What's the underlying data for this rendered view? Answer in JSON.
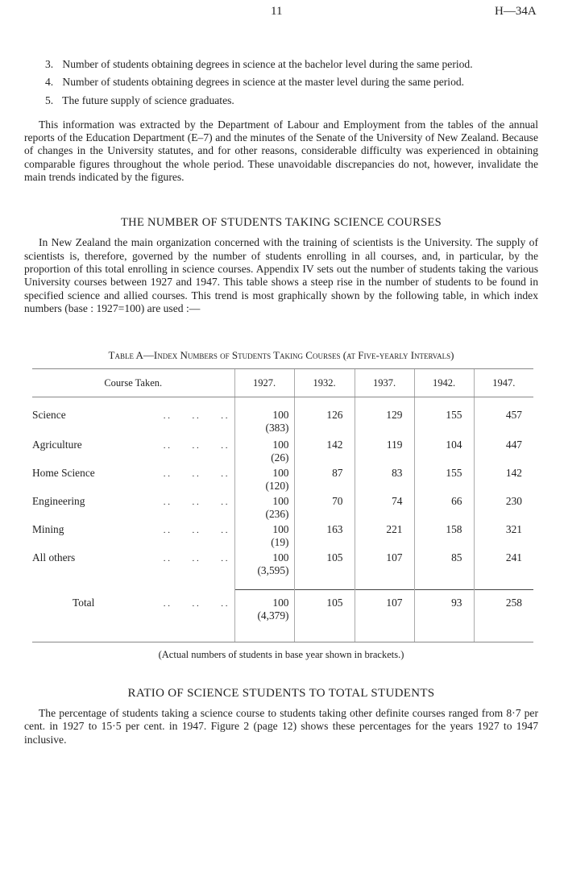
{
  "header": {
    "page_number": "11",
    "doc_code": "H—34A"
  },
  "list_items": [
    {
      "num": "3.",
      "text": "Number of students obtaining degrees in science at the bachelor level during the same period."
    },
    {
      "num": "4.",
      "text": "Number of students obtaining degrees in science at the master level during the same period."
    },
    {
      "num": "5.",
      "text": "The future supply of science graduates."
    }
  ],
  "para1": "This information was extracted by the Department of Labour and Employment from the tables of the annual reports of the Education Department (E–7) and the minutes of the Senate of the University of New Zealand. Because of changes in the University statutes, and for other reasons, considerable difficulty was experienced in obtaining comparable figures throughout the whole period. These unavoidable discrepancies do not, however, invalidate the main trends indicated by the figures.",
  "section1": {
    "heading": "THE NUMBER OF STUDENTS TAKING SCIENCE COURSES",
    "para": "In New Zealand the main organization concerned with the training of scientists is the University. The supply of scientists is, therefore, governed by the number of students enrolling in all courses, and, in particular, by the proportion of this total enrolling in science courses. Appendix IV sets out the number of students taking the various University courses between 1927 and 1947. This table shows a steep rise in the number of students to be found in specified science and allied courses. This trend is most graphically shown by the following table, in which index numbers (base : 1927=100) are used :—"
  },
  "table": {
    "caption": "Table A—Index Numbers of Students Taking Courses (at Five-yearly Intervals)",
    "headers": [
      "Course Taken.",
      "1927.",
      "1932.",
      "1937.",
      "1942.",
      "1947."
    ],
    "rows": [
      {
        "course": "Science",
        "dots": ". .          . .          . .",
        "c1927": "100",
        "base": "(383)",
        "c1932": "126",
        "c1937": "129",
        "c1942": "155",
        "c1947": "457"
      },
      {
        "course": "Agriculture",
        "dots": ". .          . .          . .",
        "c1927": "100",
        "base": "(26)",
        "c1932": "142",
        "c1937": "119",
        "c1942": "104",
        "c1947": "447"
      },
      {
        "course": "Home Science",
        "dots": ". .          . .          . .",
        "c1927": "100",
        "base": "(120)",
        "c1932": "87",
        "c1937": "83",
        "c1942": "155",
        "c1947": "142"
      },
      {
        "course": "Engineering",
        "dots": ". .          . .          . .",
        "c1927": "100",
        "base": "(236)",
        "c1932": "70",
        "c1937": "74",
        "c1942": "66",
        "c1947": "230"
      },
      {
        "course": "Mining",
        "dots": ". .          . .          . .",
        "c1927": "100",
        "base": "(19)",
        "c1932": "163",
        "c1937": "221",
        "c1942": "158",
        "c1947": "321"
      },
      {
        "course": "All others",
        "dots": ". .          . .          . .",
        "c1927": "100",
        "base": "(3,595)",
        "c1932": "105",
        "c1937": "107",
        "c1942": "85",
        "c1947": "241"
      }
    ],
    "total": {
      "course": "Total",
      "dots": ". .          . .          . .",
      "c1927": "100",
      "base": "(4,379)",
      "c1932": "105",
      "c1937": "107",
      "c1942": "93",
      "c1947": "258"
    },
    "note": "(Actual numbers of students in base year shown in brackets.)"
  },
  "section2": {
    "heading": "RATIO OF SCIENCE STUDENTS TO TOTAL STUDENTS",
    "para": "The percentage of students taking a science course to students taking other definite courses ranged from 8·7 per cent. in 1927 to 15·5 per cent. in 1947. Figure 2 (page 12) shows these percentages for the years 1927 to 1947 inclusive."
  }
}
